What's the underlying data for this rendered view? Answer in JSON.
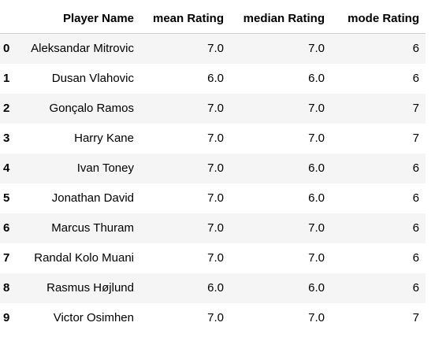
{
  "table": {
    "columns": [
      "",
      "Player Name",
      "mean Rating",
      "median Rating",
      "mode Rating"
    ],
    "rows": [
      {
        "index": "0",
        "player": "Aleksandar Mitrovic",
        "mean": "7.0",
        "median": "7.0",
        "mode": "6"
      },
      {
        "index": "1",
        "player": "Dusan Vlahovic",
        "mean": "6.0",
        "median": "6.0",
        "mode": "6"
      },
      {
        "index": "2",
        "player": "Gonçalo Ramos",
        "mean": "7.0",
        "median": "7.0",
        "mode": "7"
      },
      {
        "index": "3",
        "player": "Harry Kane",
        "mean": "7.0",
        "median": "7.0",
        "mode": "7"
      },
      {
        "index": "4",
        "player": "Ivan Toney",
        "mean": "7.0",
        "median": "6.0",
        "mode": "6"
      },
      {
        "index": "5",
        "player": "Jonathan David",
        "mean": "7.0",
        "median": "6.0",
        "mode": "6"
      },
      {
        "index": "6",
        "player": "Marcus Thuram",
        "mean": "7.0",
        "median": "7.0",
        "mode": "6"
      },
      {
        "index": "7",
        "player": "Randal Kolo Muani",
        "mean": "7.0",
        "median": "7.0",
        "mode": "6"
      },
      {
        "index": "8",
        "player": "Rasmus Højlund",
        "mean": "6.0",
        "median": "6.0",
        "mode": "6"
      },
      {
        "index": "9",
        "player": "Victor Osimhen",
        "mean": "7.0",
        "median": "7.0",
        "mode": "7"
      }
    ]
  }
}
